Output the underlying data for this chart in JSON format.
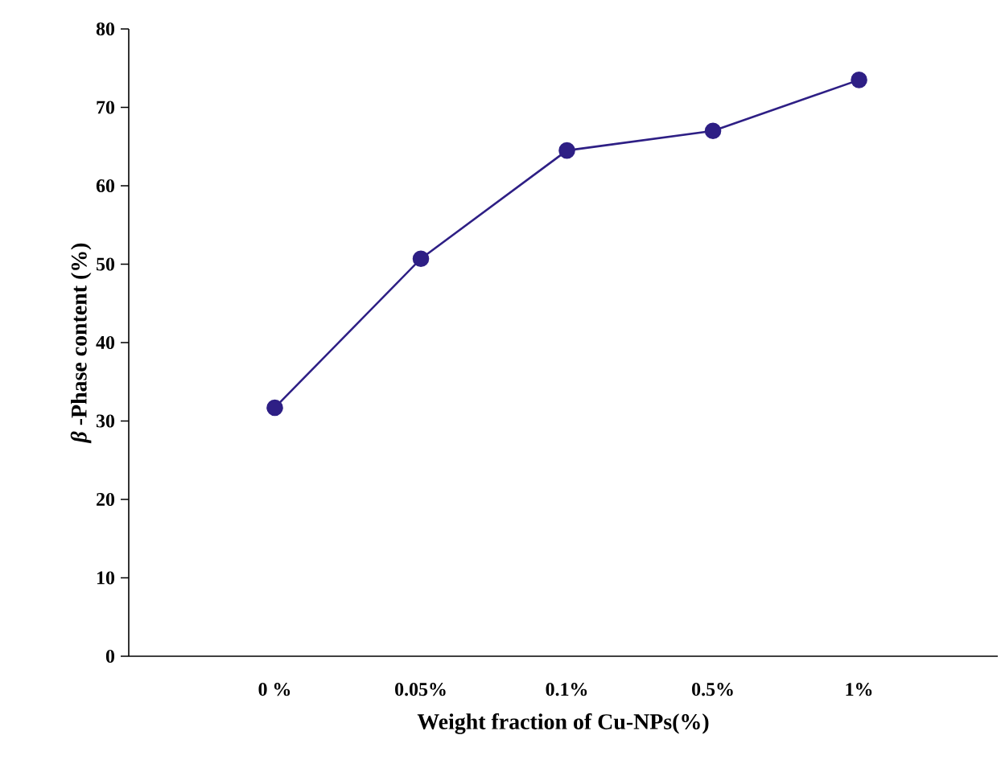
{
  "chart_data": {
    "type": "line",
    "xlabel": "Weight fraction of Cu-NPs(%)",
    "ylabel": "*β* -Phase content (%)",
    "categories": [
      "0 %",
      "0.05%",
      "0.1%",
      "0.5%",
      "1%"
    ],
    "series": [
      {
        "color": "#2e1f85",
        "values": [
          31.7,
          50.7,
          64.5,
          67.0,
          73.5
        ]
      }
    ],
    "ylim": [
      0,
      80
    ],
    "yticks": [
      0,
      10,
      20,
      30,
      40,
      50,
      60,
      70,
      80
    ],
    "grid": false,
    "marker": "circle",
    "line_style": "solid"
  }
}
